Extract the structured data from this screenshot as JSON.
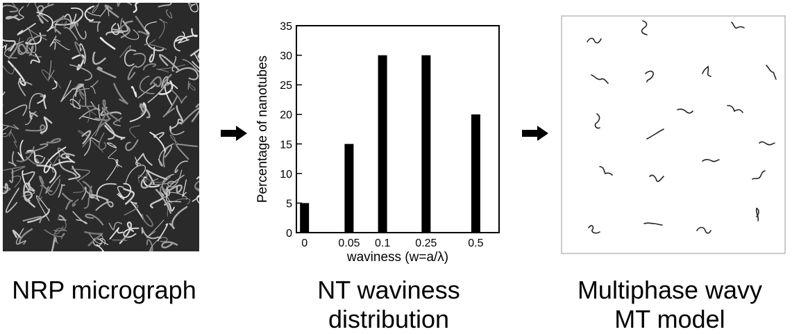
{
  "panels": {
    "micrograph_label": "NRP micrograph",
    "distribution_label_line1": "NT waviness",
    "distribution_label_line2": "distribution",
    "model_label_line1": "Multiphase wavy",
    "model_label_line2": "MT model"
  },
  "chart_data": {
    "type": "bar",
    "categories": [
      "0",
      "0.05",
      "0.1",
      "0.25",
      "0.5"
    ],
    "values": [
      5,
      15,
      30,
      30,
      20
    ],
    "xlabel": "waviness (w=a/λ)",
    "ylabel": "Percentage of nanotubes",
    "ylim": [
      0,
      35
    ],
    "yticks": [
      0,
      5,
      10,
      15,
      20,
      25,
      30,
      35
    ],
    "bar_color": "#000000",
    "grid": false
  },
  "colors": {
    "micrograph_bg": "#2a2a2a",
    "fiber": "#d8d8d8",
    "model_border": "#bbbbbb",
    "model_curve": "#222222"
  }
}
